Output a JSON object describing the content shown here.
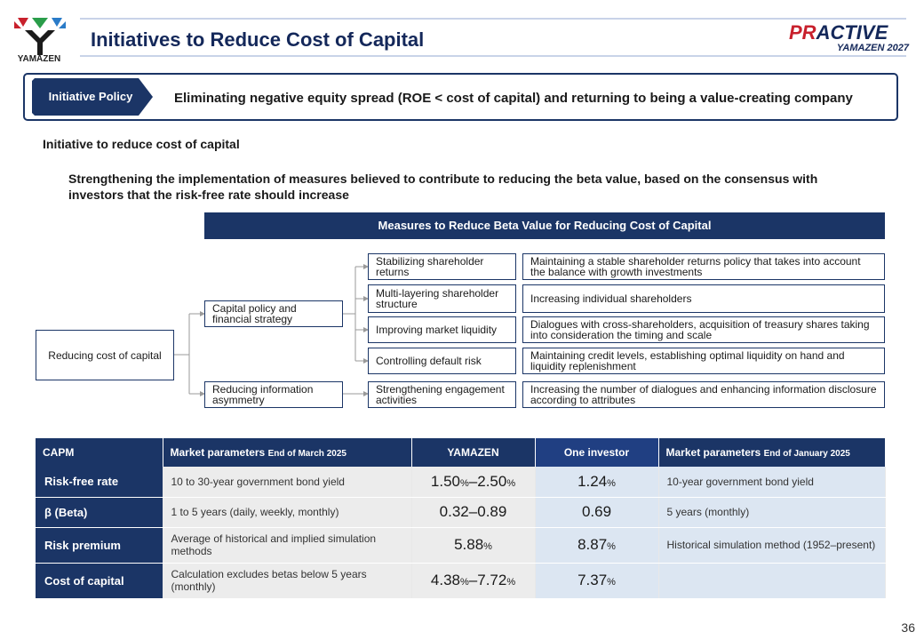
{
  "header": {
    "logo_text": "YAMAZEN",
    "title": "Initiatives to Reduce Cost of Capital",
    "brand_main_a": "PR",
    "brand_main_b": "ACTIVE",
    "brand_sub": "YAMAZEN 2027"
  },
  "policy": {
    "tag": "Initiative Policy",
    "text": "Eliminating negative equity spread (ROE < cost of capital) and returning to being a value-creating company"
  },
  "section": {
    "title": "Initiative to reduce cost of capital",
    "description": "Strengthening the implementation of measures believed to contribute to reducing the beta value, based on the consensus with investors that the risk-free rate should increase"
  },
  "diagram": {
    "header": "Measures to Reduce Beta Value for Reducing Cost of Capital",
    "root": "Reducing cost of capital",
    "level1": [
      "Capital policy and financial strategy",
      "Reducing information asymmetry"
    ],
    "level2": [
      "Stabilizing shareholder returns",
      "Multi-layering shareholder structure",
      "Improving market liquidity",
      "Controlling default risk",
      "Strengthening engagement activities"
    ],
    "level3": [
      "Maintaining a stable shareholder returns policy that takes into account the balance with growth investments",
      "Increasing individual shareholders",
      "Dialogues with cross-shareholders, acquisition of treasury shares taking into consideration the timing and scale",
      "Maintaining credit levels, establishing optimal liquidity on hand and liquidity replenishment",
      "Increasing the number of dialogues and enhancing information disclosure according to attributes"
    ]
  },
  "table": {
    "headers": {
      "c0": "CAPM",
      "c1_main": "Market parameters",
      "c1_small": "End of March 2025",
      "c2": "YAMAZEN",
      "c3": "One investor",
      "c4_main": "Market parameters",
      "c4_small": "End of January 2025"
    },
    "rows": [
      {
        "label": "Risk-free rate",
        "desc": "10 to 30-year government bond yield",
        "yamazen_a": "1.50",
        "yamazen_a_unit": "%",
        "yamazen_sep": "–",
        "yamazen_b": "2.50",
        "yamazen_b_unit": "%",
        "investor": "1.24",
        "investor_unit": "%",
        "note": "10-year government bond yield"
      },
      {
        "label": "β (Beta)",
        "desc": "1 to 5 years (daily, weekly, monthly)",
        "yamazen_a": "0.32",
        "yamazen_a_unit": "",
        "yamazen_sep": "–",
        "yamazen_b": "0.89",
        "yamazen_b_unit": "",
        "investor": "0.69",
        "investor_unit": "",
        "note": "5 years (monthly)"
      },
      {
        "label": "Risk premium",
        "desc": "Average of historical and implied simulation methods",
        "yamazen_a": "5.88",
        "yamazen_a_unit": "%",
        "yamazen_sep": "",
        "yamazen_b": "",
        "yamazen_b_unit": "",
        "investor": "8.87",
        "investor_unit": "%",
        "note": "Historical simulation method (1952–present)"
      },
      {
        "label": "Cost of capital",
        "desc": "Calculation excludes betas below 5 years (monthly)",
        "yamazen_a": "4.38",
        "yamazen_a_unit": "%",
        "yamazen_sep": "–",
        "yamazen_b": "7.72",
        "yamazen_b_unit": "%",
        "investor": "7.37",
        "investor_unit": "%",
        "note": ""
      }
    ]
  },
  "page_number": "36",
  "colors": {
    "navy": "#1b3566",
    "light_blue": "#dce6f2",
    "gray": "#ececec",
    "red": "#c8202c"
  }
}
